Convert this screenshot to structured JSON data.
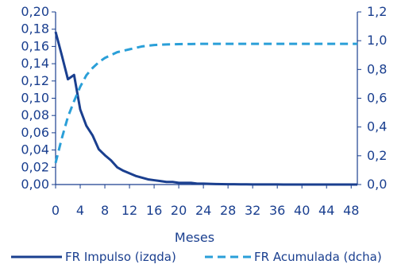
{
  "chart_data": {
    "type": "line",
    "title": "",
    "xlabel": "Meses",
    "ylabel_left": "",
    "ylabel_right": "",
    "x": [
      0,
      1,
      2,
      3,
      4,
      5,
      6,
      7,
      8,
      9,
      10,
      11,
      12,
      13,
      14,
      15,
      16,
      17,
      18,
      19,
      20,
      21,
      22,
      23,
      24,
      25,
      26,
      27,
      28,
      29,
      30,
      31,
      32,
      33,
      34,
      35,
      36,
      37,
      38,
      39,
      40,
      41,
      42,
      43,
      44,
      45,
      46,
      47,
      48,
      49
    ],
    "x_ticks": [
      "0",
      "4",
      "8",
      "12",
      "16",
      "20",
      "24",
      "28",
      "32",
      "36",
      "40",
      "44",
      "48"
    ],
    "x_tick_values": [
      0,
      4,
      8,
      12,
      16,
      20,
      24,
      28,
      32,
      36,
      40,
      44,
      48
    ],
    "xlim": [
      0,
      49
    ],
    "y_left": {
      "lim": [
        0,
        0.2
      ],
      "ticks": [
        "0,00",
        "0,02",
        "0,04",
        "0,06",
        "0,08",
        "0,10",
        "0,12",
        "0,14",
        "0,16",
        "0,18",
        "0,20"
      ],
      "tick_values": [
        0,
        0.02,
        0.04,
        0.06,
        0.08,
        0.1,
        0.12,
        0.14,
        0.16,
        0.18,
        0.2
      ]
    },
    "y_right": {
      "lim": [
        0,
        1.2
      ],
      "ticks": [
        "0,0",
        "0,2",
        "0,4",
        "0,6",
        "0,8",
        "1,0",
        "1,2"
      ],
      "tick_values": [
        0,
        0.2,
        0.4,
        0.6,
        0.8,
        1.0,
        1.2
      ]
    },
    "grid": false,
    "legend_position": "bottom",
    "series": [
      {
        "name": "FR Impulso (izqda)",
        "axis": "left",
        "style": "solid",
        "color": "#1a3f8f",
        "values": [
          0.177,
          0.15,
          0.122,
          0.127,
          0.087,
          0.068,
          0.057,
          0.041,
          0.034,
          0.028,
          0.02,
          0.016,
          0.013,
          0.01,
          0.008,
          0.006,
          0.005,
          0.004,
          0.003,
          0.003,
          0.002,
          0.002,
          0.002,
          0.001,
          0.001,
          0.0008,
          0.0006,
          0.0005,
          0.0004,
          0.0003,
          0.0002,
          0.0002,
          0.0001,
          0.0001,
          0.0001,
          0.0001,
          0.0001,
          0,
          0,
          0,
          0,
          0,
          0,
          0,
          0,
          0,
          0,
          0,
          0,
          0
        ]
      },
      {
        "name": "FR Acumulada (dcha)",
        "axis": "right",
        "style": "dashed",
        "color": "#2a9fd8",
        "values": [
          0.15,
          0.32,
          0.47,
          0.58,
          0.68,
          0.76,
          0.81,
          0.85,
          0.88,
          0.9,
          0.92,
          0.93,
          0.94,
          0.95,
          0.96,
          0.965,
          0.97,
          0.972,
          0.974,
          0.975,
          0.976,
          0.977,
          0.977,
          0.978,
          0.978,
          0.978,
          0.978,
          0.978,
          0.978,
          0.978,
          0.978,
          0.978,
          0.978,
          0.978,
          0.978,
          0.978,
          0.978,
          0.978,
          0.978,
          0.978,
          0.978,
          0.978,
          0.978,
          0.978,
          0.978,
          0.978,
          0.978,
          0.978,
          0.978,
          0.978
        ]
      }
    ]
  }
}
